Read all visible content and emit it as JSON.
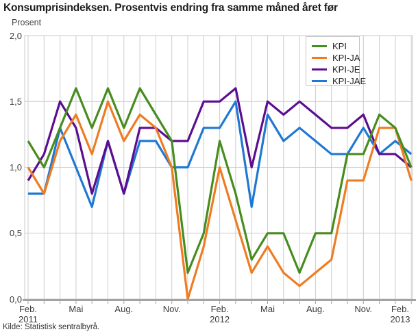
{
  "title": "Konsumprisindeksen. Prosentvis endring fra samme måned året før",
  "y_axis_label": "Prosent",
  "source": "Kilde: Statistisk sentralbyrå.",
  "colors": {
    "grid": "#cccccc",
    "plot_border": "#c8c8c8",
    "axis_line": "#a3a3a3",
    "tick_text": "#3a3a3a",
    "kpi_green": "#478c1e",
    "kpi_ja_orange": "#ee7c22",
    "kpi_je_purple": "#5c0d90",
    "kpi_jae_blue": "#1e78d4"
  },
  "chart_data": {
    "type": "line",
    "title": "Konsumprisindeksen. Prosentvis endring fra samme måned året før",
    "ylabel": "Prosent",
    "ylim": [
      0,
      2
    ],
    "grid": true,
    "legend_position": "top-right",
    "x": [
      "Feb. 2011",
      "Mar. 2011",
      "Apr. 2011",
      "Mai 2011",
      "Jun. 2011",
      "Jul. 2011",
      "Aug. 2011",
      "Sep. 2011",
      "Okt. 2011",
      "Nov. 2011",
      "Des. 2011",
      "Jan. 2012",
      "Feb. 2012",
      "Mar. 2012",
      "Apr. 2012",
      "Mai 2012",
      "Jun. 2012",
      "Jul. 2012",
      "Aug. 2012",
      "Sep. 2012",
      "Okt. 2012",
      "Nov. 2012",
      "Des. 2012",
      "Jan. 2013",
      "Feb. 2013"
    ],
    "y_ticks": [
      {
        "value": 0.0,
        "label": "0,0"
      },
      {
        "value": 0.5,
        "label": "0,5"
      },
      {
        "value": 1.0,
        "label": "1,0"
      },
      {
        "value": 1.5,
        "label": "1,5"
      },
      {
        "value": 2.0,
        "label": "2,0"
      }
    ],
    "x_ticks": [
      {
        "index": 0,
        "lines": [
          "Feb.",
          "2011"
        ]
      },
      {
        "index": 3,
        "lines": [
          "Mai"
        ]
      },
      {
        "index": 6,
        "lines": [
          "Aug."
        ]
      },
      {
        "index": 9,
        "lines": [
          "Nov."
        ]
      },
      {
        "index": 12,
        "lines": [
          "Feb.",
          "2012"
        ]
      },
      {
        "index": 15,
        "lines": [
          "Mai"
        ]
      },
      {
        "index": 18,
        "lines": [
          "Aug."
        ]
      },
      {
        "index": 21,
        "lines": [
          "Nov."
        ]
      },
      {
        "index": 24,
        "lines": [
          "Feb.",
          "2013"
        ]
      }
    ],
    "series": [
      {
        "name": "KPI",
        "color": "#478c1e",
        "values": [
          1.2,
          1.0,
          1.3,
          1.6,
          1.3,
          1.6,
          1.3,
          1.6,
          1.4,
          1.2,
          0.2,
          0.5,
          1.2,
          0.8,
          0.3,
          0.5,
          0.5,
          0.2,
          0.5,
          0.5,
          1.1,
          1.1,
          1.4,
          1.3,
          1.0
        ]
      },
      {
        "name": "KPI-JA",
        "color": "#ee7c22",
        "values": [
          1.0,
          0.8,
          1.2,
          1.4,
          1.1,
          1.5,
          1.2,
          1.4,
          1.3,
          1.0,
          0.0,
          0.4,
          1.0,
          0.6,
          0.2,
          0.4,
          0.2,
          0.1,
          0.2,
          0.3,
          0.9,
          0.9,
          1.3,
          1.3,
          0.9
        ]
      },
      {
        "name": "KPI-JE",
        "color": "#5c0d90",
        "values": [
          0.9,
          1.1,
          1.5,
          1.3,
          0.8,
          1.2,
          0.8,
          1.3,
          1.3,
          1.2,
          1.2,
          1.5,
          1.5,
          1.6,
          1.0,
          1.5,
          1.4,
          1.5,
          1.4,
          1.3,
          1.3,
          1.4,
          1.1,
          1.1,
          1.0
        ]
      },
      {
        "name": "KPI-JAE",
        "color": "#1e78d4",
        "values": [
          0.8,
          0.8,
          1.3,
          1.0,
          0.7,
          1.2,
          0.8,
          1.2,
          1.2,
          1.0,
          1.0,
          1.3,
          1.3,
          1.5,
          0.7,
          1.4,
          1.2,
          1.3,
          1.2,
          1.1,
          1.1,
          1.3,
          1.1,
          1.2,
          1.1
        ]
      }
    ]
  }
}
